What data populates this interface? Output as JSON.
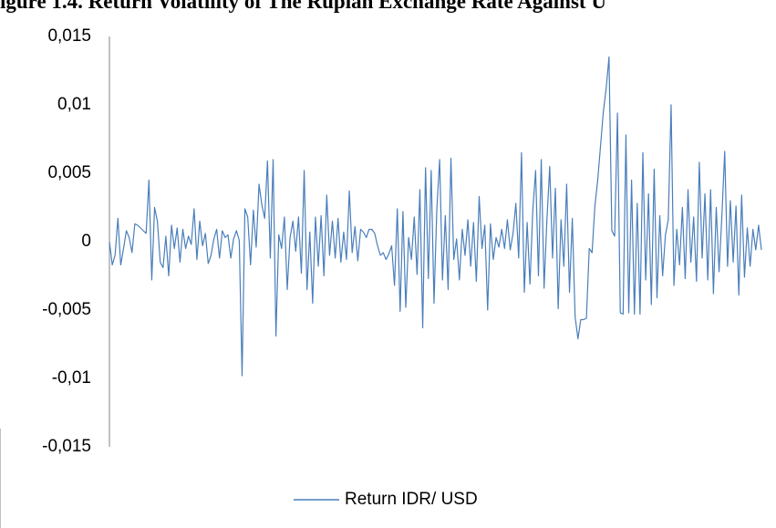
{
  "chart_data": {
    "type": "line",
    "title": "igure 1.4. Return Volatility of The Rupiah Exchange Rate Against U",
    "series": [
      {
        "name": "Return IDR/ USD",
        "color": "#4a7ebb",
        "values": [
          0,
          -0.0017,
          -0.001,
          0.0017,
          -0.0017,
          -0.0005,
          0.0008,
          0.0003,
          -0.0008,
          0.0013,
          0.0012,
          0.001,
          0.0008,
          0.0006,
          0.0045,
          -0.0028,
          0.0025,
          0.0015,
          -0.0015,
          -0.0019,
          0.0004,
          -0.0025,
          0.0012,
          -0.0005,
          0.001,
          -0.0015,
          0.0009,
          -0.0005,
          0.0004,
          -0.0002,
          0.0024,
          -0.0013,
          0.0015,
          -0.0003,
          0.0006,
          -0.0016,
          -0.001,
          0.0002,
          0.0009,
          -0.0012,
          0.0008,
          0.0003,
          0.0005,
          -0.0012,
          0.0002,
          0.0008,
          0.0001,
          -0.0098,
          0.0024,
          0.0018,
          -0.0017,
          0.0023,
          -0.0004,
          0.0042,
          0.0027,
          0.0017,
          0.0059,
          -0.0012,
          0.006,
          -0.0069,
          0.0005,
          -0.0005,
          0.0018,
          -0.0035,
          0.0003,
          0.0015,
          -0.0007,
          0.0018,
          -0.0023,
          0.0052,
          -0.0035,
          0.0007,
          -0.0045,
          0.0018,
          -0.0018,
          0.0019,
          -0.0025,
          0.0034,
          -0.001,
          0.0015,
          -0.0012,
          0.0017,
          -0.0015,
          0.0007,
          -0.0013,
          0.0037,
          -0.0008,
          0.0011,
          -0.0014,
          0.0009,
          0.0007,
          0.0003,
          0.0009,
          0.0009,
          0.0006,
          -0.0003,
          -0.001,
          -0.0008,
          -0.0013,
          -0.0009,
          -0.0003,
          -0.0032,
          0.0024,
          -0.0051,
          0.0022,
          -0.0048,
          0.0003,
          -0.0013,
          0.0018,
          -0.0024,
          0.0038,
          -0.0063,
          0.0054,
          -0.0027,
          0.0052,
          -0.0045,
          0.0024,
          0.006,
          -0.0028,
          0.0019,
          -0.0035,
          0.0061,
          -0.0013,
          0.0002,
          -0.0028,
          0.0009,
          -0.001,
          0.0016,
          -0.0018,
          0.0014,
          -0.0029,
          0.0033,
          -0.0005,
          0.0012,
          -0.005,
          0.0013,
          -0.0013,
          0.0003,
          -0.0004,
          0.0009,
          -0.0005,
          0.0016,
          -0.0006,
          0.0006,
          0.0028,
          -0.0012,
          0.0065,
          -0.0037,
          0.0014,
          -0.0031,
          0.0023,
          0.0052,
          -0.0025,
          0.006,
          -0.0034,
          0.0016,
          0.0055,
          -0.0012,
          0.0039,
          -0.0049,
          0.0016,
          -0.0018,
          0.0042,
          -0.0037,
          0.0017,
          -0.0055,
          -0.0071,
          -0.0057,
          -0.0057,
          -0.0056,
          -0.0005,
          -0.0008,
          0.0026,
          0.0045,
          0.007,
          0.0095,
          0.0112,
          0.0135,
          0.0008,
          0.0004,
          0.0094,
          -0.0052,
          -0.0053,
          0.0078,
          -0.0052,
          0.0045,
          -0.0053,
          0.0028,
          -0.0053,
          0.0065,
          -0.0028,
          0.0035,
          -0.0046,
          0.0053,
          -0.0041,
          0.0019,
          -0.0025,
          0.0005,
          0.0016,
          0.01,
          -0.0032,
          0.0009,
          -0.0017,
          0.0025,
          -0.0027,
          0.0038,
          -0.0015,
          0.0018,
          -0.0029,
          0.0058,
          -0.0012,
          0.0035,
          -0.0028,
          0.0038,
          -0.0038,
          0.0025,
          -0.0022,
          0.0019,
          0.0066,
          -0.0018,
          0.003,
          -0.0015,
          0.0026,
          -0.0039,
          0.0034,
          -0.0026,
          0.001,
          -0.0018,
          0.0009,
          -0.0006,
          0.0012,
          -0.0006
        ]
      }
    ],
    "ylim": [
      -0.015,
      0.015
    ],
    "yticks": [
      {
        "value": -0.015,
        "label": "-0,015"
      },
      {
        "value": -0.01,
        "label": "-0,01"
      },
      {
        "value": -0.005,
        "label": "-0,005"
      },
      0,
      {
        "value": 0.005,
        "label": "0,005"
      },
      {
        "value": 0.01,
        "label": "0,01"
      },
      {
        "value": 0.015,
        "label": "0,015"
      }
    ],
    "grid": false,
    "legend": "bottom"
  }
}
